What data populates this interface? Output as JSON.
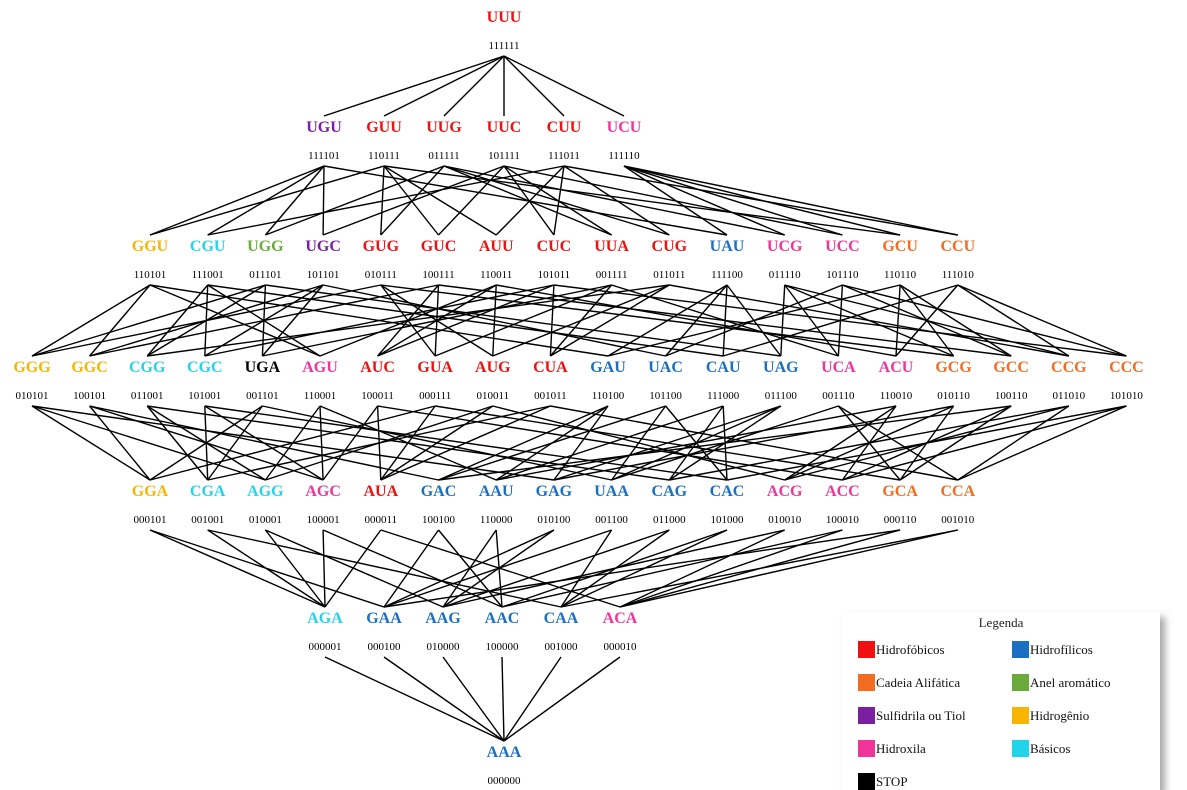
{
  "levels": [
    [
      {
        "codon": "UUU",
        "binary": "111111",
        "cls": "hidrofobico"
      }
    ],
    [
      {
        "codon": "UGU",
        "binary": "111101",
        "cls": "sulfidrila"
      },
      {
        "codon": "GUU",
        "binary": "110111",
        "cls": "hidrofobico"
      },
      {
        "codon": "UUG",
        "binary": "011111",
        "cls": "hidrofobico"
      },
      {
        "codon": "UUC",
        "binary": "101111",
        "cls": "hidrofobico"
      },
      {
        "codon": "CUU",
        "binary": "111011",
        "cls": "hidrofobico"
      },
      {
        "codon": "UCU",
        "binary": "111110",
        "cls": "hidroxila"
      }
    ],
    [
      {
        "codon": "GGU",
        "binary": "110101",
        "cls": "hidrogenio"
      },
      {
        "codon": "CGU",
        "binary": "111001",
        "cls": "basico"
      },
      {
        "codon": "UGG",
        "binary": "011101",
        "cls": "aromatico"
      },
      {
        "codon": "UGC",
        "binary": "101101",
        "cls": "sulfidrila"
      },
      {
        "codon": "GUG",
        "binary": "010111",
        "cls": "hidrofobico"
      },
      {
        "codon": "GUC",
        "binary": "100111",
        "cls": "hidrofobico"
      },
      {
        "codon": "AUU",
        "binary": "110011",
        "cls": "hidrofobico"
      },
      {
        "codon": "CUC",
        "binary": "101011",
        "cls": "hidrofobico"
      },
      {
        "codon": "UUA",
        "binary": "001111",
        "cls": "hidrofobico"
      },
      {
        "codon": "CUG",
        "binary": "011011",
        "cls": "hidrofobico"
      },
      {
        "codon": "UAU",
        "binary": "111100",
        "cls": "hidrofilico"
      },
      {
        "codon": "UCG",
        "binary": "011110",
        "cls": "hidroxila"
      },
      {
        "codon": "UCC",
        "binary": "101110",
        "cls": "hidroxila"
      },
      {
        "codon": "GCU",
        "binary": "110110",
        "cls": "alifatica"
      },
      {
        "codon": "CCU",
        "binary": "111010",
        "cls": "alifatica"
      }
    ],
    [
      {
        "codon": "GGG",
        "binary": "010101",
        "cls": "hidrogenio"
      },
      {
        "codon": "GGC",
        "binary": "100101",
        "cls": "hidrogenio"
      },
      {
        "codon": "CGG",
        "binary": "011001",
        "cls": "basico"
      },
      {
        "codon": "CGC",
        "binary": "101001",
        "cls": "basico"
      },
      {
        "codon": "UGA",
        "binary": "001101",
        "cls": "stop"
      },
      {
        "codon": "AGU",
        "binary": "110001",
        "cls": "hidroxila"
      },
      {
        "codon": "AUC",
        "binary": "100011",
        "cls": "hidrofobico"
      },
      {
        "codon": "GUA",
        "binary": "000111",
        "cls": "hidrofobico"
      },
      {
        "codon": "AUG",
        "binary": "010011",
        "cls": "hidrofobico"
      },
      {
        "codon": "CUA",
        "binary": "001011",
        "cls": "hidrofobico"
      },
      {
        "codon": "GAU",
        "binary": "110100",
        "cls": "hidrofilico"
      },
      {
        "codon": "UAC",
        "binary": "101100",
        "cls": "hidrofilico"
      },
      {
        "codon": "CAU",
        "binary": "111000",
        "cls": "hidrofilico"
      },
      {
        "codon": "UAG",
        "binary": "011100",
        "cls": "hidrofilico"
      },
      {
        "codon": "UCA",
        "binary": "001110",
        "cls": "hidroxila"
      },
      {
        "codon": "ACU",
        "binary": "110010",
        "cls": "hidroxila"
      },
      {
        "codon": "GCG",
        "binary": "010110",
        "cls": "alifatica"
      },
      {
        "codon": "GCC",
        "binary": "100110",
        "cls": "alifatica"
      },
      {
        "codon": "CCG",
        "binary": "011010",
        "cls": "alifatica"
      },
      {
        "codon": "CCC",
        "binary": "101010",
        "cls": "alifatica"
      }
    ],
    [
      {
        "codon": "GGA",
        "binary": "000101",
        "cls": "hidrogenio"
      },
      {
        "codon": "CGA",
        "binary": "001001",
        "cls": "basico"
      },
      {
        "codon": "AGG",
        "binary": "010001",
        "cls": "basico"
      },
      {
        "codon": "AGC",
        "binary": "100001",
        "cls": "hidroxila"
      },
      {
        "codon": "AUA",
        "binary": "000011",
        "cls": "hidrofobico"
      },
      {
        "codon": "GAC",
        "binary": "100100",
        "cls": "hidrofilico"
      },
      {
        "codon": "AAU",
        "binary": "110000",
        "cls": "hidrofilico"
      },
      {
        "codon": "GAG",
        "binary": "010100",
        "cls": "hidrofilico"
      },
      {
        "codon": "UAA",
        "binary": "001100",
        "cls": "hidrofilico"
      },
      {
        "codon": "CAG",
        "binary": "011000",
        "cls": "hidrofilico"
      },
      {
        "codon": "CAC",
        "binary": "101000",
        "cls": "hidrofilico"
      },
      {
        "codon": "ACG",
        "binary": "010010",
        "cls": "hidroxila"
      },
      {
        "codon": "ACC",
        "binary": "100010",
        "cls": "hidroxila"
      },
      {
        "codon": "GCA",
        "binary": "000110",
        "cls": "alifatica"
      },
      {
        "codon": "CCA",
        "binary": "001010",
        "cls": "alifatica"
      }
    ],
    [
      {
        "codon": "AGA",
        "binary": "000001",
        "cls": "basico"
      },
      {
        "codon": "GAA",
        "binary": "000100",
        "cls": "hidrofilico"
      },
      {
        "codon": "AAG",
        "binary": "010000",
        "cls": "hidrofilico"
      },
      {
        "codon": "AAC",
        "binary": "100000",
        "cls": "hidrofilico"
      },
      {
        "codon": "CAA",
        "binary": "001000",
        "cls": "hidrofilico"
      },
      {
        "codon": "ACA",
        "binary": "000010",
        "cls": "hidroxila"
      }
    ],
    [
      {
        "codon": "AAA",
        "binary": "000000",
        "cls": "hidrofilico"
      }
    ]
  ],
  "legend": {
    "title": "Legenda",
    "items": [
      {
        "key": "hidrofobico",
        "label": "Hidrofóbicos",
        "color": "#ee1111"
      },
      {
        "key": "hidrofilico",
        "label": "Hidrofílicos",
        "color": "#1a6fc4"
      },
      {
        "key": "alifatica",
        "label": "Cadeia Alifática",
        "color": "#f26d21"
      },
      {
        "key": "aromatico",
        "label": "Anel aromático",
        "color": "#6aaa3a"
      },
      {
        "key": "sulfidrila",
        "label": "Sulfidrila ou Tiol",
        "color": "#7a1fa2"
      },
      {
        "key": "hidrogenio",
        "label": "Hidrogênio",
        "color": "#f7b500"
      },
      {
        "key": "hidroxila",
        "label": "Hidroxila",
        "color": "#f0359a"
      },
      {
        "key": "basico",
        "label": "Básicos",
        "color": "#22d4e8"
      },
      {
        "key": "stop",
        "label": "STOP",
        "color": "#000000"
      }
    ]
  }
}
